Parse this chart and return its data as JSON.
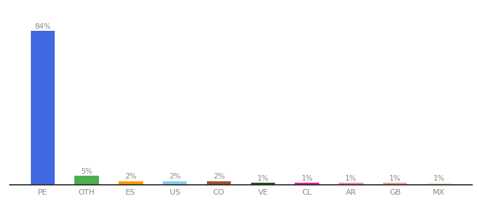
{
  "categories": [
    "PE",
    "OTH",
    "ES",
    "US",
    "CO",
    "VE",
    "CL",
    "AR",
    "GB",
    "MX"
  ],
  "values": [
    84,
    5,
    2,
    2,
    2,
    1,
    1,
    1,
    1,
    1
  ],
  "labels": [
    "84%",
    "5%",
    "2%",
    "2%",
    "2%",
    "1%",
    "1%",
    "1%",
    "1%",
    "1%"
  ],
  "bar_colors": [
    "#4169e1",
    "#4caf50",
    "#ff9800",
    "#87ceeb",
    "#a0522d",
    "#1a5c1a",
    "#e91e8c",
    "#f48fb1",
    "#e8a898",
    "#f0eed8"
  ],
  "figsize": [
    6.8,
    3.0
  ],
  "dpi": 100,
  "ylim": [
    0,
    95
  ],
  "label_fontsize": 7.5,
  "tick_fontsize": 8,
  "bar_width": 0.55,
  "label_color": "#888888",
  "tick_color": "#888888",
  "spine_color": "#222222"
}
